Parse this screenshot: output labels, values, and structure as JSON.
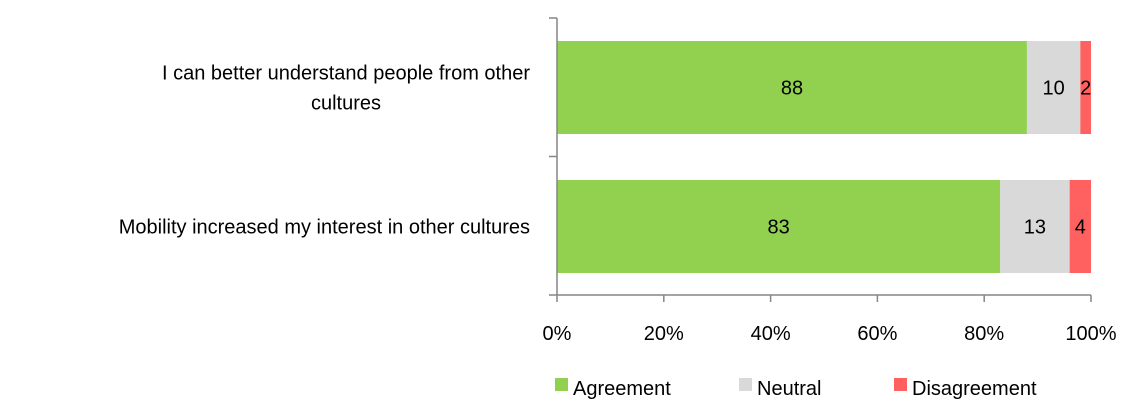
{
  "chart_data": {
    "type": "bar",
    "orientation": "horizontal",
    "stacked": "percent",
    "categories": [
      [
        "I can better understand people from other",
        "cultures"
      ],
      [
        "Mobility increased my interest in other cultures"
      ]
    ],
    "series": [
      {
        "name": "Agreement",
        "color": "#92D050",
        "values": [
          88,
          83
        ]
      },
      {
        "name": "Neutral",
        "color": "#D9D9D9",
        "values": [
          10,
          13
        ]
      },
      {
        "name": "Disagreement",
        "color": "#FF6161",
        "values": [
          2,
          4
        ]
      }
    ],
    "xlim": [
      0,
      100
    ],
    "xticks": [
      0,
      20,
      40,
      60,
      80,
      100
    ],
    "tick_labels": [
      "0%",
      "20%",
      "40%",
      "60%",
      "80%",
      "100%"
    ],
    "grid": false,
    "data_labels": true,
    "legend": "bottom"
  }
}
